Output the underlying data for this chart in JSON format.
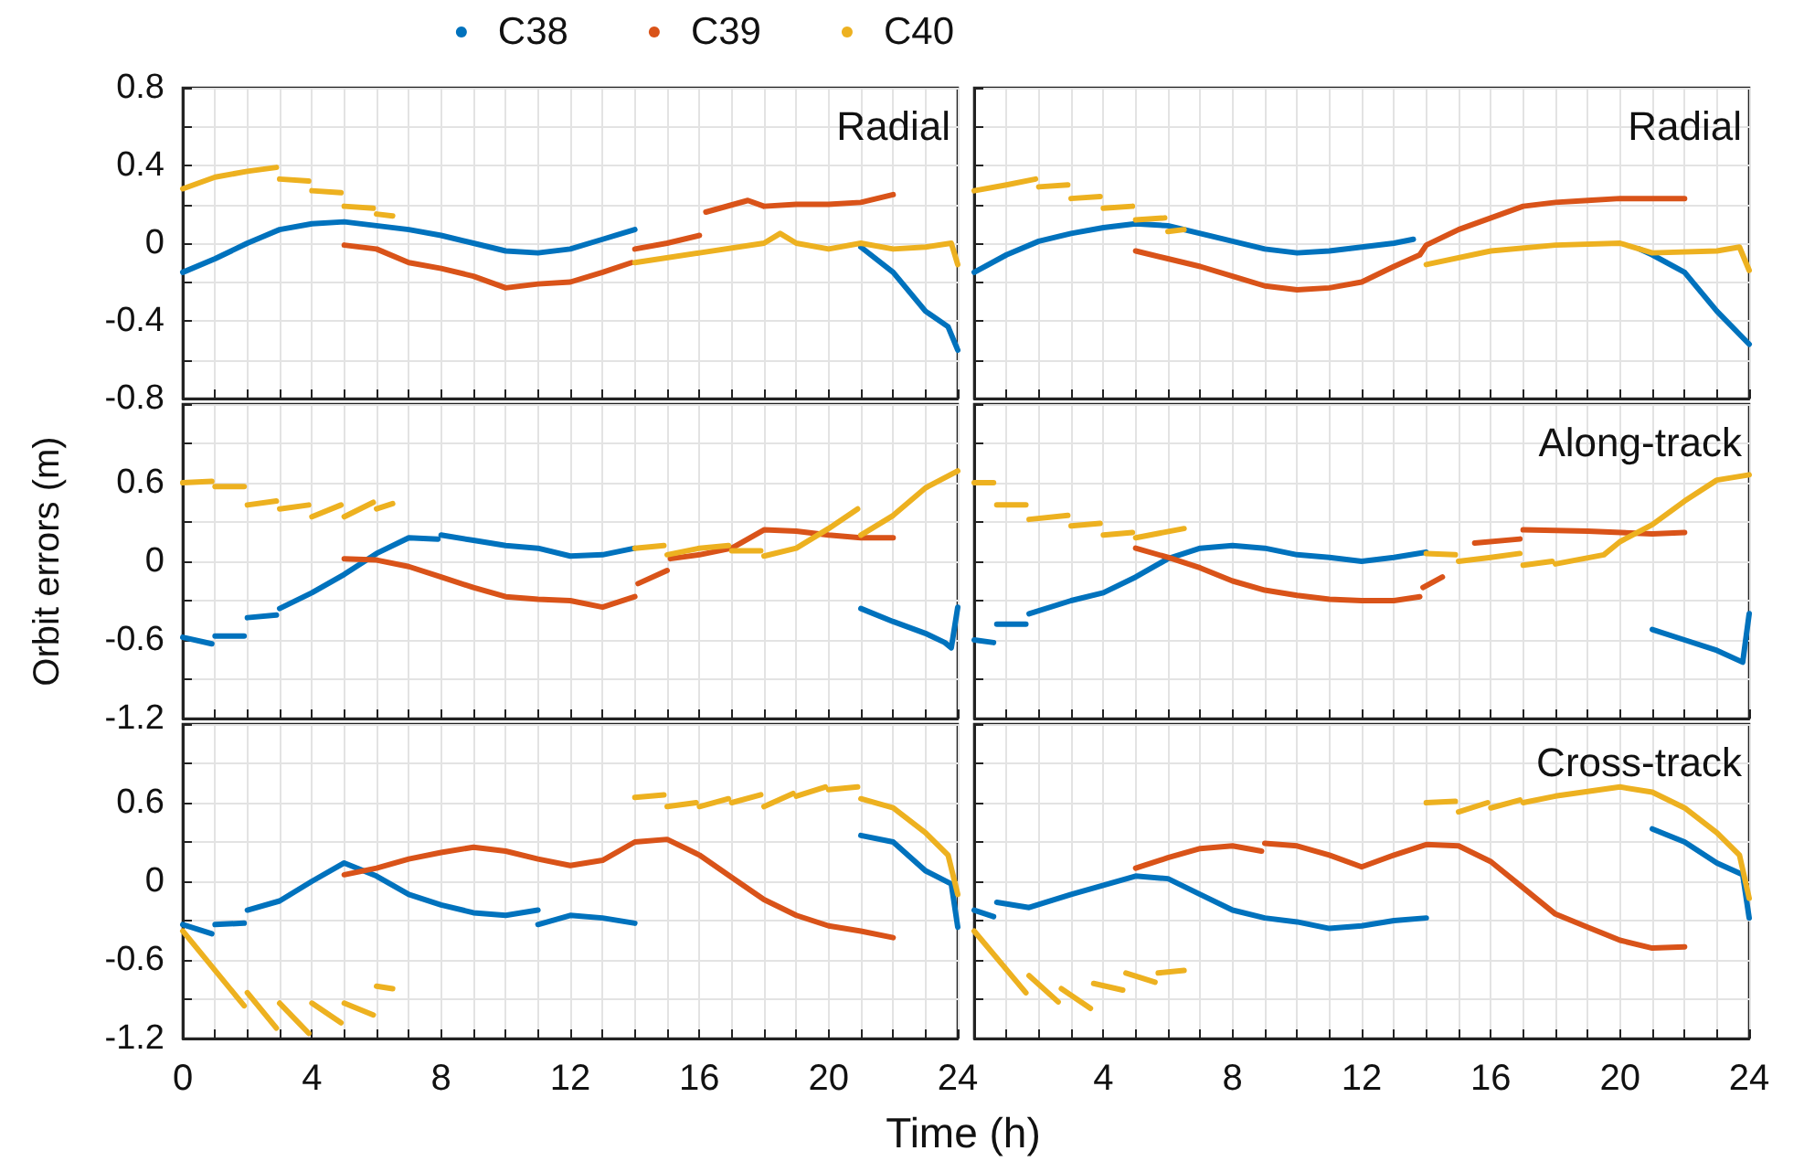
{
  "chart_data": [
    {
      "type": "line",
      "annotations": [
        "Radial"
      ],
      "legend": "top",
      "grid": true,
      "tick_labels": "y",
      "xlim": [
        0,
        24
      ],
      "ylim": [
        -0.8,
        0.8
      ],
      "xticks": [
        0,
        {
          "value": 1,
          "label": null
        },
        {
          "value": 2,
          "label": null
        },
        {
          "value": 3,
          "label": null
        },
        4,
        {
          "value": 5,
          "label": null
        },
        {
          "value": 6,
          "label": null
        },
        {
          "value": 7,
          "label": null
        },
        8,
        {
          "value": 9,
          "label": null
        },
        {
          "value": 10,
          "label": null
        },
        {
          "value": 11,
          "label": null
        },
        12,
        {
          "value": 13,
          "label": null
        },
        {
          "value": 14,
          "label": null
        },
        {
          "value": 15,
          "label": null
        },
        16,
        {
          "value": 17,
          "label": null
        },
        {
          "value": 18,
          "label": null
        },
        {
          "value": 19,
          "label": null
        },
        20,
        {
          "value": 21,
          "label": null
        },
        {
          "value": 22,
          "label": null
        },
        {
          "value": 23,
          "label": null
        },
        24
      ],
      "yticks": [
        -0.8,
        {
          "value": -0.6,
          "label": null
        },
        -0.4,
        {
          "value": -0.2,
          "label": null
        },
        0,
        {
          "value": 0.2,
          "label": null
        },
        0.4,
        {
          "value": 0.6,
          "label": null
        },
        0.8
      ],
      "series": [
        {
          "name": "C38",
          "color": "#0072bd",
          "x": [
            0,
            1,
            2,
            3,
            4,
            5,
            6,
            7,
            8,
            9,
            10,
            11,
            12,
            13,
            14
          ],
          "values": [
            -0.15,
            -0.08,
            0.0,
            0.07,
            0.1,
            0.11,
            0.09,
            0.07,
            0.04,
            0.0,
            -0.04,
            -0.05,
            -0.03,
            0.02,
            0.07
          ]
        },
        {
          "color": "#0072bd",
          "x": [
            21,
            22,
            23,
            23.7,
            24
          ],
          "values": [
            -0.02,
            -0.15,
            -0.35,
            -0.43,
            -0.55
          ]
        },
        {
          "name": "C39",
          "color": "#d95319",
          "x": [
            5,
            6,
            7,
            8,
            9,
            10,
            11,
            12,
            13,
            13.9
          ],
          "values": [
            -0.01,
            -0.03,
            -0.1,
            -0.13,
            -0.17,
            -0.23,
            -0.21,
            -0.2,
            -0.15,
            -0.1
          ]
        },
        {
          "color": "#d95319",
          "x": [
            14,
            15,
            16
          ],
          "values": [
            -0.03,
            0.0,
            0.04
          ]
        },
        {
          "color": "#d95319",
          "x": [
            16.2,
            17.5,
            18,
            19,
            20,
            21,
            22
          ],
          "values": [
            0.16,
            0.22,
            0.19,
            0.2,
            0.2,
            0.21,
            0.25
          ]
        },
        {
          "name": "C40",
          "color": "#edb120",
          "x": [
            0,
            1,
            2,
            2.9
          ],
          "values": [
            0.28,
            0.34,
            0.37,
            0.39
          ]
        },
        {
          "color": "#edb120",
          "x": [
            3,
            3.9
          ],
          "values": [
            0.33,
            0.32
          ]
        },
        {
          "color": "#edb120",
          "x": [
            4,
            4.9
          ],
          "values": [
            0.27,
            0.26
          ]
        },
        {
          "color": "#edb120",
          "x": [
            5,
            5.9
          ],
          "values": [
            0.19,
            0.18
          ]
        },
        {
          "color": "#edb120",
          "x": [
            6,
            6.5
          ],
          "values": [
            0.15,
            0.14
          ]
        },
        {
          "color": "#edb120",
          "x": [
            14,
            16,
            18,
            18.5,
            19,
            20,
            21,
            22,
            23,
            23.8,
            24
          ],
          "values": [
            -0.1,
            -0.05,
            0.0,
            0.05,
            0.0,
            -0.03,
            0.0,
            -0.03,
            -0.02,
            0.0,
            -0.11
          ]
        }
      ]
    },
    {
      "type": "line",
      "annotations": [
        "Radial"
      ],
      "grid": true,
      "tick_labels": false,
      "xlim": [
        0,
        24
      ],
      "ylim": [
        -0.8,
        0.8
      ],
      "xticks": [
        0,
        {
          "value": 1,
          "label": null
        },
        {
          "value": 2,
          "label": null
        },
        {
          "value": 3,
          "label": null
        },
        4,
        {
          "value": 5,
          "label": null
        },
        {
          "value": 6,
          "label": null
        },
        {
          "value": 7,
          "label": null
        },
        8,
        {
          "value": 9,
          "label": null
        },
        {
          "value": 10,
          "label": null
        },
        {
          "value": 11,
          "label": null
        },
        12,
        {
          "value": 13,
          "label": null
        },
        {
          "value": 14,
          "label": null
        },
        {
          "value": 15,
          "label": null
        },
        16,
        {
          "value": 17,
          "label": null
        },
        {
          "value": 18,
          "label": null
        },
        {
          "value": 19,
          "label": null
        },
        20,
        {
          "value": 21,
          "label": null
        },
        {
          "value": 22,
          "label": null
        },
        {
          "value": 23,
          "label": null
        },
        24
      ],
      "yticks": [
        -0.8,
        {
          "value": -0.6,
          "label": null
        },
        -0.4,
        {
          "value": -0.2,
          "label": null
        },
        0,
        {
          "value": 0.2,
          "label": null
        },
        0.4,
        {
          "value": 0.6,
          "label": null
        },
        0.8
      ],
      "series": [
        {
          "color": "#0072bd",
          "x": [
            0,
            1,
            2,
            3,
            4,
            5,
            6,
            7,
            8,
            9,
            10,
            11,
            12,
            13,
            13.6
          ],
          "values": [
            -0.15,
            -0.06,
            0.01,
            0.05,
            0.08,
            0.1,
            0.09,
            0.05,
            0.01,
            -0.03,
            -0.05,
            -0.04,
            -0.02,
            0.0,
            0.02
          ]
        },
        {
          "color": "#0072bd",
          "x": [
            20.6,
            21,
            22,
            23,
            24
          ],
          "values": [
            -0.03,
            -0.06,
            -0.15,
            -0.35,
            -0.52
          ]
        },
        {
          "color": "#d95319",
          "x": [
            5,
            6,
            7,
            8,
            9,
            10,
            11,
            12,
            13,
            13.8,
            14,
            15,
            16,
            17,
            18,
            19,
            20,
            21,
            22
          ],
          "values": [
            -0.04,
            -0.08,
            -0.12,
            -0.17,
            -0.22,
            -0.24,
            -0.23,
            -0.2,
            -0.12,
            -0.06,
            -0.01,
            0.07,
            0.13,
            0.19,
            0.21,
            0.22,
            0.23,
            0.23,
            0.23
          ]
        },
        {
          "color": "#edb120",
          "x": [
            0,
            1,
            1.9
          ],
          "values": [
            0.27,
            0.3,
            0.33
          ]
        },
        {
          "color": "#edb120",
          "x": [
            2,
            2.9
          ],
          "values": [
            0.29,
            0.3
          ]
        },
        {
          "color": "#edb120",
          "x": [
            3,
            3.9
          ],
          "values": [
            0.23,
            0.24
          ]
        },
        {
          "color": "#edb120",
          "x": [
            4,
            4.9
          ],
          "values": [
            0.18,
            0.19
          ]
        },
        {
          "color": "#edb120",
          "x": [
            5,
            5.9
          ],
          "values": [
            0.12,
            0.13
          ]
        },
        {
          "color": "#edb120",
          "x": [
            6,
            6.5
          ],
          "values": [
            0.06,
            0.07
          ]
        },
        {
          "color": "#edb120",
          "x": [
            14,
            16,
            18,
            20,
            21,
            23,
            23.7,
            24
          ],
          "values": [
            -0.11,
            -0.04,
            -0.01,
            0.0,
            -0.05,
            -0.04,
            -0.02,
            -0.14
          ]
        }
      ]
    },
    {
      "type": "line",
      "ylabel": "Orbit errors (m)",
      "grid": true,
      "tick_labels": "y",
      "xlim": [
        0,
        24
      ],
      "ylim": [
        -1.2,
        1.2
      ],
      "xticks": [
        0,
        {
          "value": 1,
          "label": null
        },
        {
          "value": 2,
          "label": null
        },
        {
          "value": 3,
          "label": null
        },
        4,
        {
          "value": 5,
          "label": null
        },
        {
          "value": 6,
          "label": null
        },
        {
          "value": 7,
          "label": null
        },
        8,
        {
          "value": 9,
          "label": null
        },
        {
          "value": 10,
          "label": null
        },
        {
          "value": 11,
          "label": null
        },
        12,
        {
          "value": 13,
          "label": null
        },
        {
          "value": 14,
          "label": null
        },
        {
          "value": 15,
          "label": null
        },
        16,
        {
          "value": 17,
          "label": null
        },
        {
          "value": 18,
          "label": null
        },
        {
          "value": 19,
          "label": null
        },
        20,
        {
          "value": 21,
          "label": null
        },
        {
          "value": 22,
          "label": null
        },
        {
          "value": 23,
          "label": null
        },
        24
      ],
      "yticks": [
        -1.2,
        {
          "value": -0.9,
          "label": null
        },
        -0.6,
        {
          "value": -0.3,
          "label": null
        },
        0,
        {
          "value": 0.3,
          "label": null
        },
        0.6,
        {
          "value": 0.9,
          "label": null
        },
        {
          "value": 1.2,
          "label": null
        }
      ],
      "series": [
        {
          "color": "#0072bd",
          "x": [
            0,
            0.9
          ],
          "values": [
            -0.58,
            -0.63
          ]
        },
        {
          "color": "#0072bd",
          "x": [
            1,
            1.9
          ],
          "values": [
            -0.57,
            -0.57
          ]
        },
        {
          "color": "#0072bd",
          "x": [
            2,
            2.9
          ],
          "values": [
            -0.43,
            -0.41
          ]
        },
        {
          "color": "#0072bd",
          "x": [
            3,
            4,
            5,
            6,
            7,
            7.9
          ],
          "values": [
            -0.36,
            -0.24,
            -0.1,
            0.06,
            0.18,
            0.17
          ]
        },
        {
          "color": "#0072bd",
          "x": [
            8,
            9,
            10,
            11,
            12,
            13,
            14
          ],
          "values": [
            0.2,
            0.16,
            0.12,
            0.1,
            0.04,
            0.05,
            0.1
          ]
        },
        {
          "color": "#0072bd",
          "x": [
            21,
            22,
            23,
            23.6,
            23.8,
            24
          ],
          "values": [
            -0.36,
            -0.46,
            -0.55,
            -0.62,
            -0.66,
            -0.35
          ]
        },
        {
          "color": "#d95319",
          "x": [
            5,
            6,
            7,
            8,
            9,
            10,
            11,
            12,
            13,
            14
          ],
          "values": [
            0.02,
            0.01,
            -0.04,
            -0.12,
            -0.2,
            -0.27,
            -0.29,
            -0.3,
            -0.35,
            -0.27
          ]
        },
        {
          "color": "#d95319",
          "x": [
            14.1,
            15
          ],
          "values": [
            -0.17,
            -0.07
          ]
        },
        {
          "color": "#d95319",
          "x": [
            15.1,
            16,
            17,
            18,
            19,
            20,
            21,
            22
          ],
          "values": [
            0.02,
            0.05,
            0.1,
            0.24,
            0.23,
            0.2,
            0.18,
            0.18
          ]
        },
        {
          "color": "#edb120",
          "x": [
            0,
            0.9
          ],
          "values": [
            0.6,
            0.61
          ]
        },
        {
          "color": "#edb120",
          "x": [
            1,
            1.9
          ],
          "values": [
            0.57,
            0.57
          ]
        },
        {
          "color": "#edb120",
          "x": [
            2,
            2.9
          ],
          "values": [
            0.43,
            0.46
          ]
        },
        {
          "color": "#edb120",
          "x": [
            3,
            3.9
          ],
          "values": [
            0.4,
            0.43
          ]
        },
        {
          "color": "#edb120",
          "x": [
            4,
            4.9
          ],
          "values": [
            0.34,
            0.43
          ]
        },
        {
          "color": "#edb120",
          "x": [
            5,
            5.9
          ],
          "values": [
            0.34,
            0.45
          ]
        },
        {
          "color": "#edb120",
          "x": [
            6,
            6.5
          ],
          "values": [
            0.4,
            0.44
          ]
        },
        {
          "color": "#edb120",
          "x": [
            14,
            14.9
          ],
          "values": [
            0.1,
            0.12
          ]
        },
        {
          "color": "#edb120",
          "x": [
            15,
            16,
            16.9
          ],
          "values": [
            0.05,
            0.1,
            0.12
          ]
        },
        {
          "color": "#edb120",
          "x": [
            17,
            17.9
          ],
          "values": [
            0.08,
            0.08
          ]
        },
        {
          "color": "#edb120",
          "x": [
            18,
            19,
            20,
            20.9
          ],
          "values": [
            0.04,
            0.1,
            0.25,
            0.4
          ]
        },
        {
          "color": "#edb120",
          "x": [
            21,
            22,
            23,
            24
          ],
          "values": [
            0.2,
            0.35,
            0.56,
            0.69
          ]
        }
      ]
    },
    {
      "type": "line",
      "annotations": [
        "Along-track"
      ],
      "grid": true,
      "tick_labels": false,
      "xlim": [
        0,
        24
      ],
      "ylim": [
        -1.2,
        1.2
      ],
      "xticks": [
        0,
        {
          "value": 1,
          "label": null
        },
        {
          "value": 2,
          "label": null
        },
        {
          "value": 3,
          "label": null
        },
        4,
        {
          "value": 5,
          "label": null
        },
        {
          "value": 6,
          "label": null
        },
        {
          "value": 7,
          "label": null
        },
        8,
        {
          "value": 9,
          "label": null
        },
        {
          "value": 10,
          "label": null
        },
        {
          "value": 11,
          "label": null
        },
        12,
        {
          "value": 13,
          "label": null
        },
        {
          "value": 14,
          "label": null
        },
        {
          "value": 15,
          "label": null
        },
        16,
        {
          "value": 17,
          "label": null
        },
        {
          "value": 18,
          "label": null
        },
        {
          "value": 19,
          "label": null
        },
        20,
        {
          "value": 21,
          "label": null
        },
        {
          "value": 22,
          "label": null
        },
        {
          "value": 23,
          "label": null
        },
        24
      ],
      "yticks": [
        -1.2,
        {
          "value": -0.9,
          "label": null
        },
        -0.6,
        {
          "value": -0.3,
          "label": null
        },
        0,
        {
          "value": 0.3,
          "label": null
        },
        0.6,
        {
          "value": 0.9,
          "label": null
        },
        {
          "value": 1.2,
          "label": null
        }
      ],
      "series": [
        {
          "color": "#0072bd",
          "x": [
            0,
            0.6
          ],
          "values": [
            -0.6,
            -0.62
          ]
        },
        {
          "color": "#0072bd",
          "x": [
            0.7,
            1.6
          ],
          "values": [
            -0.48,
            -0.48
          ]
        },
        {
          "color": "#0072bd",
          "x": [
            1.7,
            3,
            4,
            5,
            6,
            7,
            8,
            9,
            10,
            11,
            12,
            13,
            14
          ],
          "values": [
            -0.4,
            -0.3,
            -0.24,
            -0.12,
            0.02,
            0.1,
            0.12,
            0.1,
            0.05,
            0.03,
            0.0,
            0.03,
            0.07
          ]
        },
        {
          "color": "#0072bd",
          "x": [
            21,
            22,
            23,
            23.8,
            24
          ],
          "values": [
            -0.52,
            -0.6,
            -0.68,
            -0.77,
            -0.4
          ]
        },
        {
          "color": "#d95319",
          "x": [
            5,
            6,
            7,
            8,
            9,
            10,
            11,
            12,
            13,
            13.8
          ],
          "values": [
            0.1,
            0.03,
            -0.05,
            -0.15,
            -0.22,
            -0.26,
            -0.29,
            -0.3,
            -0.3,
            -0.27
          ]
        },
        {
          "color": "#d95319",
          "x": [
            13.9,
            14.5
          ],
          "values": [
            -0.2,
            -0.12
          ]
        },
        {
          "color": "#d95319",
          "x": [
            15.5,
            16.9
          ],
          "values": [
            0.14,
            0.17
          ]
        },
        {
          "color": "#d95319",
          "x": [
            17,
            19,
            21,
            22
          ],
          "values": [
            0.24,
            0.23,
            0.21,
            0.22
          ]
        },
        {
          "color": "#edb120",
          "x": [
            0,
            0.6
          ],
          "values": [
            0.6,
            0.6
          ]
        },
        {
          "color": "#edb120",
          "x": [
            0.7,
            1.6
          ],
          "values": [
            0.43,
            0.43
          ]
        },
        {
          "color": "#edb120",
          "x": [
            1.7,
            2.9
          ],
          "values": [
            0.32,
            0.35
          ]
        },
        {
          "color": "#edb120",
          "x": [
            3,
            3.9
          ],
          "values": [
            0.27,
            0.29
          ]
        },
        {
          "color": "#edb120",
          "x": [
            4,
            4.9
          ],
          "values": [
            0.2,
            0.22
          ]
        },
        {
          "color": "#edb120",
          "x": [
            5,
            6.5
          ],
          "values": [
            0.18,
            0.25
          ]
        },
        {
          "color": "#edb120",
          "x": [
            14,
            14.9
          ],
          "values": [
            0.06,
            0.05
          ]
        },
        {
          "color": "#edb120",
          "x": [
            15,
            16,
            16.9
          ],
          "values": [
            0.0,
            0.03,
            0.06
          ]
        },
        {
          "color": "#edb120",
          "x": [
            17,
            17.9
          ],
          "values": [
            -0.03,
            0.0
          ]
        },
        {
          "color": "#edb120",
          "x": [
            18,
            19.5,
            20,
            21,
            22,
            23,
            24
          ],
          "values": [
            -0.02,
            0.05,
            0.15,
            0.28,
            0.46,
            0.62,
            0.66
          ]
        }
      ]
    },
    {
      "type": "line",
      "xlabel": "Time (h)",
      "grid": true,
      "xlim": [
        0,
        24
      ],
      "ylim": [
        -1.2,
        1.2
      ],
      "xticks": [
        0,
        {
          "value": 1,
          "label": null
        },
        {
          "value": 2,
          "label": null
        },
        {
          "value": 3,
          "label": null
        },
        4,
        {
          "value": 5,
          "label": null
        },
        {
          "value": 6,
          "label": null
        },
        {
          "value": 7,
          "label": null
        },
        8,
        {
          "value": 9,
          "label": null
        },
        {
          "value": 10,
          "label": null
        },
        {
          "value": 11,
          "label": null
        },
        12,
        {
          "value": 13,
          "label": null
        },
        {
          "value": 14,
          "label": null
        },
        {
          "value": 15,
          "label": null
        },
        16,
        {
          "value": 17,
          "label": null
        },
        {
          "value": 18,
          "label": null
        },
        {
          "value": 19,
          "label": null
        },
        20,
        {
          "value": 21,
          "label": null
        },
        {
          "value": 22,
          "label": null
        },
        {
          "value": 23,
          "label": null
        },
        24
      ],
      "yticks": [
        -1.2,
        {
          "value": -0.9,
          "label": null
        },
        -0.6,
        {
          "value": -0.3,
          "label": null
        },
        0,
        {
          "value": 0.3,
          "label": null
        },
        0.6,
        {
          "value": 0.9,
          "label": null
        },
        {
          "value": 1.2,
          "label": null
        }
      ],
      "series": [
        {
          "color": "#0072bd",
          "x": [
            0,
            0.9
          ],
          "values": [
            -0.33,
            -0.4
          ]
        },
        {
          "color": "#0072bd",
          "x": [
            1,
            1.9
          ],
          "values": [
            -0.33,
            -0.32
          ]
        },
        {
          "color": "#0072bd",
          "x": [
            2,
            3,
            4,
            5,
            6,
            7,
            8,
            9,
            10,
            11
          ],
          "values": [
            -0.22,
            -0.15,
            0.0,
            0.14,
            0.04,
            -0.1,
            -0.18,
            -0.24,
            -0.26,
            -0.22
          ]
        },
        {
          "color": "#0072bd",
          "x": [
            11,
            12,
            13,
            14
          ],
          "values": [
            -0.33,
            -0.26,
            -0.28,
            -0.32
          ]
        },
        {
          "color": "#0072bd",
          "x": [
            21,
            22,
            23,
            23.8,
            24
          ],
          "values": [
            0.35,
            0.3,
            0.08,
            -0.02,
            -0.35
          ]
        },
        {
          "color": "#d95319",
          "x": [
            5,
            6,
            7,
            8,
            9,
            10,
            11,
            12,
            13,
            14,
            15,
            16,
            17,
            18,
            19,
            20,
            21,
            22
          ],
          "values": [
            0.05,
            0.1,
            0.17,
            0.22,
            0.26,
            0.23,
            0.17,
            0.12,
            0.16,
            0.3,
            0.32,
            0.2,
            0.03,
            -0.14,
            -0.26,
            -0.34,
            -0.38,
            -0.43
          ]
        },
        {
          "color": "#edb120",
          "x": [
            0,
            1.9
          ],
          "values": [
            -0.38,
            -0.95
          ]
        },
        {
          "color": "#edb120",
          "x": [
            2,
            2.9
          ],
          "values": [
            -0.85,
            -1.12
          ]
        },
        {
          "color": "#edb120",
          "x": [
            3,
            3.9
          ],
          "values": [
            -0.93,
            -1.16
          ]
        },
        {
          "color": "#edb120",
          "x": [
            4,
            4.9
          ],
          "values": [
            -0.93,
            -1.08
          ]
        },
        {
          "color": "#edb120",
          "x": [
            5,
            5.9
          ],
          "values": [
            -0.93,
            -1.02
          ]
        },
        {
          "color": "#edb120",
          "x": [
            6,
            6.5
          ],
          "values": [
            -0.8,
            -0.82
          ]
        },
        {
          "color": "#edb120",
          "x": [
            14,
            14.9
          ],
          "values": [
            0.64,
            0.66
          ]
        },
        {
          "color": "#edb120",
          "x": [
            15,
            15.9
          ],
          "values": [
            0.57,
            0.6
          ]
        },
        {
          "color": "#edb120",
          "x": [
            16,
            16.9
          ],
          "values": [
            0.57,
            0.63
          ]
        },
        {
          "color": "#edb120",
          "x": [
            17,
            17.9
          ],
          "values": [
            0.6,
            0.66
          ]
        },
        {
          "color": "#edb120",
          "x": [
            18,
            18.9
          ],
          "values": [
            0.57,
            0.67
          ]
        },
        {
          "color": "#edb120",
          "x": [
            19,
            19.9
          ],
          "values": [
            0.65,
            0.72
          ]
        },
        {
          "color": "#edb120",
          "x": [
            20,
            20.9
          ],
          "values": [
            0.7,
            0.72
          ]
        },
        {
          "color": "#edb120",
          "x": [
            21,
            22,
            23,
            23.7,
            24
          ],
          "values": [
            0.63,
            0.56,
            0.37,
            0.2,
            -0.1
          ]
        }
      ]
    },
    {
      "type": "line",
      "annotations": [
        "Cross-track"
      ],
      "grid": true,
      "tick_labels": "x",
      "xlim": [
        0,
        24
      ],
      "ylim": [
        -1.2,
        1.2
      ],
      "xticks": [
        {
          "value": 0,
          "label": null
        },
        {
          "value": 1,
          "label": null
        },
        {
          "value": 2,
          "label": null
        },
        {
          "value": 3,
          "label": null
        },
        4,
        {
          "value": 5,
          "label": null
        },
        {
          "value": 6,
          "label": null
        },
        {
          "value": 7,
          "label": null
        },
        8,
        {
          "value": 9,
          "label": null
        },
        {
          "value": 10,
          "label": null
        },
        {
          "value": 11,
          "label": null
        },
        12,
        {
          "value": 13,
          "label": null
        },
        {
          "value": 14,
          "label": null
        },
        {
          "value": 15,
          "label": null
        },
        16,
        {
          "value": 17,
          "label": null
        },
        {
          "value": 18,
          "label": null
        },
        {
          "value": 19,
          "label": null
        },
        20,
        {
          "value": 21,
          "label": null
        },
        {
          "value": 22,
          "label": null
        },
        {
          "value": 23,
          "label": null
        },
        24
      ],
      "yticks": [
        -1.2,
        {
          "value": -0.9,
          "label": null
        },
        -0.6,
        {
          "value": -0.3,
          "label": null
        },
        0,
        {
          "value": 0.3,
          "label": null
        },
        0.6,
        {
          "value": 0.9,
          "label": null
        },
        {
          "value": 1.2,
          "label": null
        }
      ],
      "series": [
        {
          "color": "#0072bd",
          "x": [
            0,
            0.6
          ],
          "values": [
            -0.22,
            -0.27
          ]
        },
        {
          "color": "#0072bd",
          "x": [
            0.7,
            1.7,
            3,
            4,
            5,
            6,
            7,
            8,
            9,
            10,
            11,
            12,
            13,
            14
          ],
          "values": [
            -0.16,
            -0.2,
            -0.1,
            -0.03,
            0.04,
            0.02,
            -0.1,
            -0.22,
            -0.28,
            -0.31,
            -0.36,
            -0.34,
            -0.3,
            -0.28
          ]
        },
        {
          "color": "#0072bd",
          "x": [
            21,
            22,
            23,
            23.8,
            24
          ],
          "values": [
            0.4,
            0.3,
            0.14,
            0.05,
            -0.28
          ]
        },
        {
          "color": "#d95319",
          "x": [
            5,
            6,
            7,
            8,
            8.9
          ],
          "values": [
            0.1,
            0.18,
            0.25,
            0.27,
            0.23
          ]
        },
        {
          "color": "#d95319",
          "x": [
            9,
            10,
            11,
            12,
            13,
            14,
            15,
            16,
            17,
            18,
            19,
            20,
            21,
            22
          ],
          "values": [
            0.29,
            0.27,
            0.2,
            0.11,
            0.2,
            0.28,
            0.27,
            0.15,
            -0.05,
            -0.25,
            -0.35,
            -0.45,
            -0.51,
            -0.5
          ]
        },
        {
          "color": "#edb120",
          "x": [
            0,
            1.6
          ],
          "values": [
            -0.38,
            -0.85
          ]
        },
        {
          "color": "#edb120",
          "x": [
            1.7,
            2.6
          ],
          "values": [
            -0.72,
            -0.92
          ]
        },
        {
          "color": "#edb120",
          "x": [
            2.7,
            3.6
          ],
          "values": [
            -0.82,
            -0.97
          ]
        },
        {
          "color": "#edb120",
          "x": [
            3.7,
            4.6
          ],
          "values": [
            -0.78,
            -0.83
          ]
        },
        {
          "color": "#edb120",
          "x": [
            4.7,
            5.6
          ],
          "values": [
            -0.7,
            -0.77
          ]
        },
        {
          "color": "#edb120",
          "x": [
            5.7,
            6.5
          ],
          "values": [
            -0.7,
            -0.68
          ]
        },
        {
          "color": "#edb120",
          "x": [
            14,
            14.9
          ],
          "values": [
            0.6,
            0.61
          ]
        },
        {
          "color": "#edb120",
          "x": [
            15,
            15.9
          ],
          "values": [
            0.53,
            0.6
          ]
        },
        {
          "color": "#edb120",
          "x": [
            16,
            16.9
          ],
          "values": [
            0.56,
            0.62
          ]
        },
        {
          "color": "#edb120",
          "x": [
            17,
            18,
            20,
            21,
            22,
            23,
            23.7,
            24
          ],
          "values": [
            0.6,
            0.65,
            0.72,
            0.68,
            0.56,
            0.37,
            0.2,
            -0.13
          ]
        }
      ]
    }
  ]
}
